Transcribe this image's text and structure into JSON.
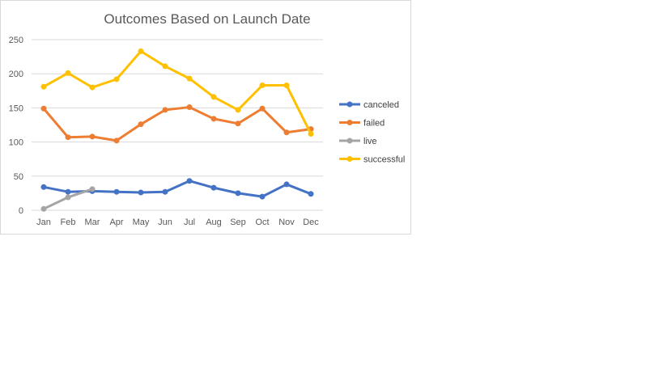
{
  "chart_data": {
    "type": "line",
    "title": "Outcomes Based on Launch Date",
    "xlabel": "",
    "ylabel": "",
    "categories": [
      "Jan",
      "Feb",
      "Mar",
      "Apr",
      "May",
      "Jun",
      "Jul",
      "Aug",
      "Sep",
      "Oct",
      "Nov",
      "Dec"
    ],
    "ylim": [
      0,
      250
    ],
    "yticks": [
      0,
      50,
      100,
      150,
      200,
      250
    ],
    "grid": true,
    "legend_position": "right",
    "series": [
      {
        "name": "canceled",
        "color": "#4472c4",
        "values": [
          34,
          27,
          28,
          27,
          26,
          27,
          43,
          33,
          25,
          20,
          38,
          24
        ]
      },
      {
        "name": "failed",
        "color": "#ed7d31",
        "values": [
          149,
          107,
          108,
          102,
          126,
          147,
          151,
          134,
          127,
          149,
          114,
          119
        ]
      },
      {
        "name": "live",
        "color": "#a5a5a5",
        "values": [
          2,
          19,
          31,
          null,
          null,
          null,
          null,
          null,
          null,
          null,
          null,
          null
        ]
      },
      {
        "name": "successful",
        "color": "#ffc000",
        "values": [
          181,
          201,
          180,
          192,
          233,
          211,
          193,
          166,
          147,
          183,
          183,
          112
        ]
      }
    ]
  }
}
